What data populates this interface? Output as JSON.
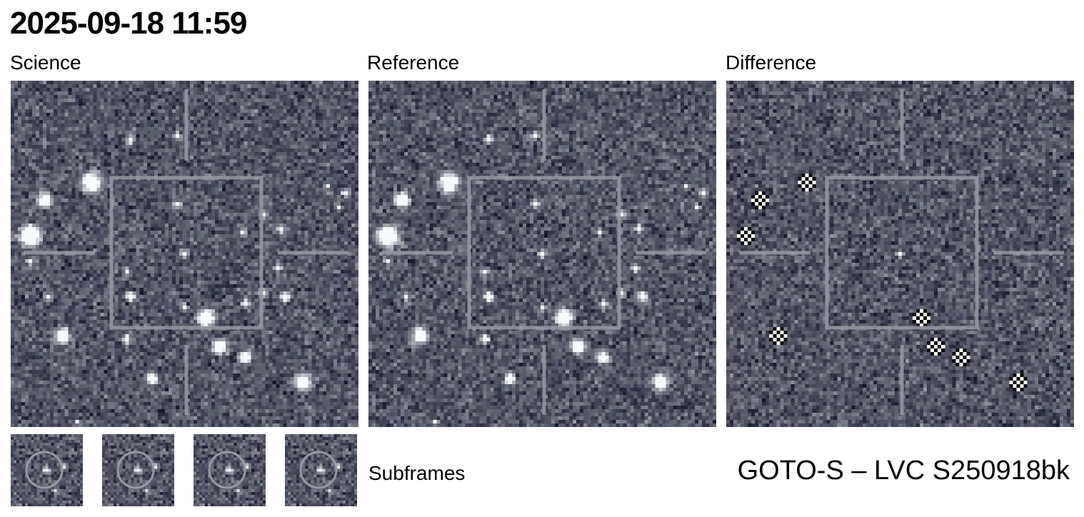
{
  "header": {
    "title": "2025-09-18 11:59"
  },
  "panels": [
    {
      "id": "science",
      "label": "Science"
    },
    {
      "id": "reference",
      "label": "Reference"
    },
    {
      "id": "difference",
      "label": "Difference"
    }
  ],
  "subframes": {
    "label": "Subframes",
    "count": 4
  },
  "footer": {
    "label": "GOTO-S – LVC S250918bk"
  },
  "colors": {
    "background_sky": "#4a4c6a",
    "star": "#eef8f6",
    "marker": "#9a9aa4"
  }
}
